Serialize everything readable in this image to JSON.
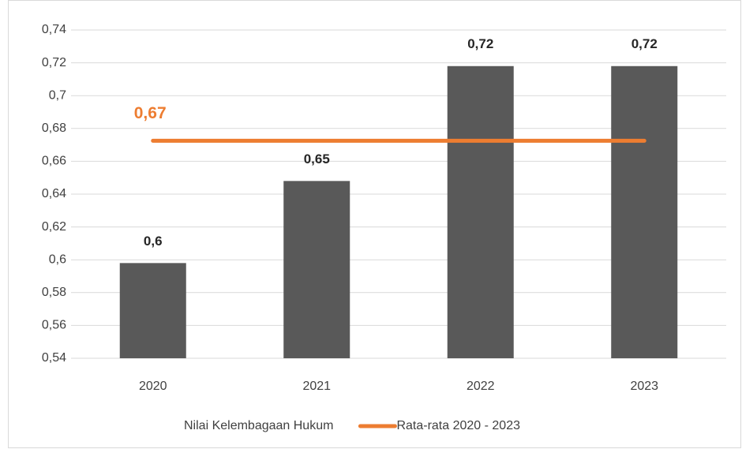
{
  "chart_data": {
    "type": "bar",
    "categories": [
      "2020",
      "2021",
      "2022",
      "2023"
    ],
    "series": [
      {
        "name": "Nilai Kelembagaan Hukum",
        "type": "bar",
        "color": "#595959",
        "values": [
          0.598,
          0.648,
          0.718,
          0.718
        ],
        "value_labels": [
          "0,6",
          "0,65",
          "0,72",
          "0,72"
        ]
      },
      {
        "name": "Rata-rata 2020 - 2023",
        "type": "line",
        "color": "#ed7d31",
        "values": [
          0.6725,
          0.6725,
          0.6725,
          0.6725
        ],
        "value_labels": [
          "0,67",
          null,
          null,
          null
        ]
      }
    ],
    "ylim": [
      0.54,
      0.74
    ],
    "yticks": [
      {
        "value": 0.54,
        "label": "0,54"
      },
      {
        "value": 0.56,
        "label": "0,56"
      },
      {
        "value": 0.58,
        "label": "0,58"
      },
      {
        "value": 0.6,
        "label": "0,6"
      },
      {
        "value": 0.62,
        "label": "0,62"
      },
      {
        "value": 0.64,
        "label": "0,64"
      },
      {
        "value": 0.66,
        "label": "0,66"
      },
      {
        "value": 0.68,
        "label": "0,68"
      },
      {
        "value": 0.7,
        "label": "0,7"
      },
      {
        "value": 0.72,
        "label": "0,72"
      },
      {
        "value": 0.74,
        "label": "0,74"
      }
    ],
    "grid": true,
    "legend": "bottom"
  }
}
